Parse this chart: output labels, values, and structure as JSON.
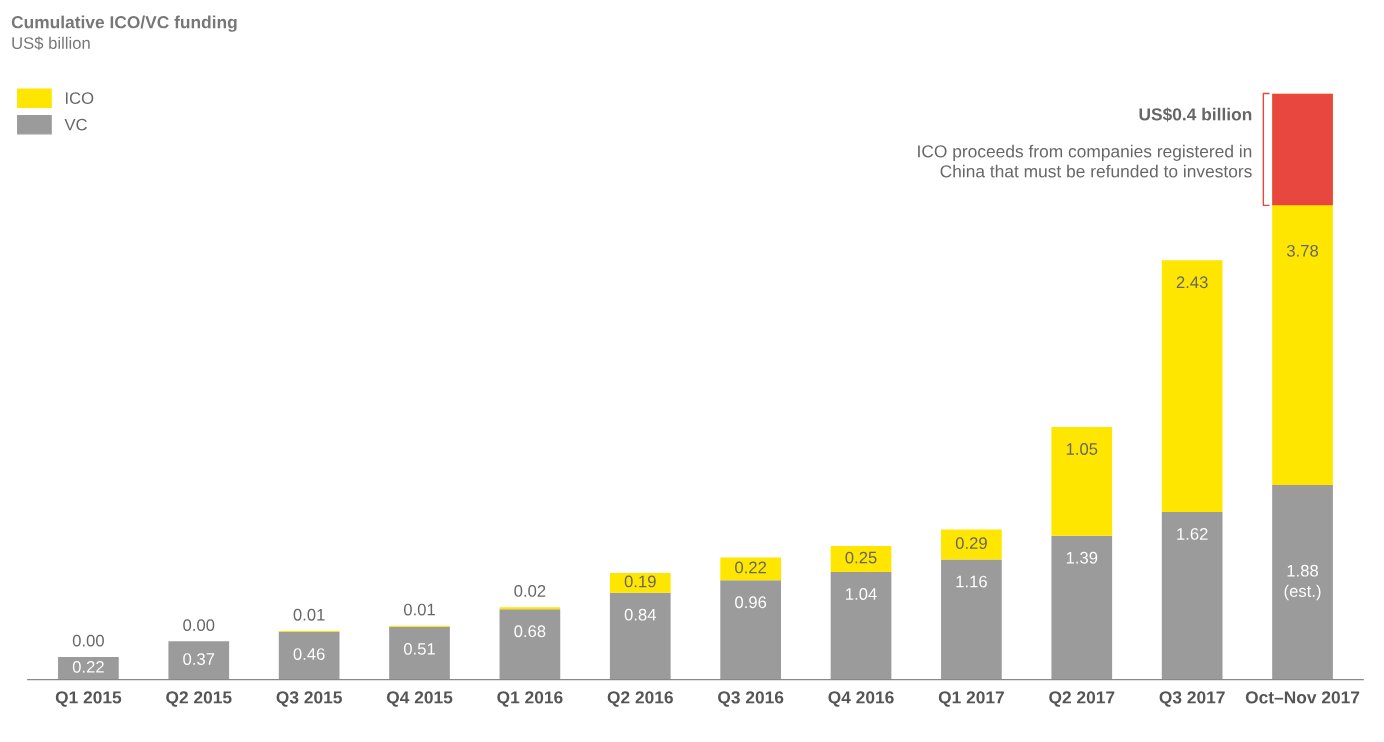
{
  "chart_data": {
    "type": "bar",
    "stacked": true,
    "title": "Cumulative ICO/VC funding",
    "subtitle": "US$ billion",
    "categories": [
      "Q1 2015",
      "Q2 2015",
      "Q3 2015",
      "Q4 2015",
      "Q1 2016",
      "Q2 2016",
      "Q3 2016",
      "Q4 2016",
      "Q1 2017",
      "Q2 2017",
      "Q3 2017",
      "Oct–Nov 2017"
    ],
    "series": [
      {
        "name": "VC",
        "color": "#9b9b9b",
        "values": [
          0.22,
          0.37,
          0.46,
          0.51,
          0.68,
          0.84,
          0.96,
          1.04,
          1.16,
          1.39,
          1.62,
          1.88
        ],
        "value_labels": [
          "0.22",
          "0.37",
          "0.46",
          "0.51",
          "0.68",
          "0.84",
          "0.96",
          "1.04",
          "1.16",
          "1.39",
          "1.62",
          "1.88\n(est.)"
        ]
      },
      {
        "name": "ICO",
        "color": "#ffe600",
        "values": [
          0.0,
          0.0,
          0.01,
          0.01,
          0.02,
          0.19,
          0.22,
          0.25,
          0.29,
          1.05,
          2.43,
          3.78
        ],
        "value_labels": [
          "0.00",
          "0.00",
          "0.01",
          "0.01",
          "0.02",
          "0.19",
          "0.22",
          "0.25",
          "0.29",
          "1.05",
          "2.43",
          "3.78"
        ]
      }
    ],
    "bands": [
      {
        "axis": "y",
        "from": 4.58,
        "to": 5.66,
        "color": "#e8473f"
      }
    ],
    "annotations": [
      "US$0.4 billion",
      "ICO proceeds from companies registered in\nChina that must be refunded to investors"
    ],
    "legend": "top left",
    "grid": false
  }
}
